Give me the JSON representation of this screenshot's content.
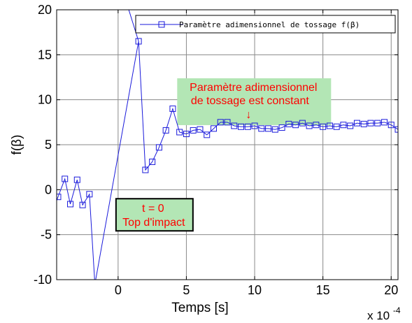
{
  "chart_data": {
    "type": "line",
    "xlabel": "Temps [s]",
    "ylabel": "f(β)",
    "x_exponent_base": "x 10",
    "x_exponent_power": "-4",
    "xlim": [
      -4.5,
      20.5
    ],
    "ylim": [
      -10,
      20
    ],
    "xticks": [
      0,
      5,
      10,
      15,
      20
    ],
    "yticks": [
      -10,
      -5,
      0,
      5,
      10,
      15,
      20
    ],
    "xtick_labels": [
      "0",
      "5",
      "10",
      "15",
      "20"
    ],
    "ytick_labels": [
      "-10",
      "-5",
      "0",
      "5",
      "10",
      "15",
      "20"
    ],
    "grid": true,
    "legend_position": "top-right",
    "colors": {
      "series": "#1a1adb",
      "annotation_fill": "#b3e6b5",
      "annotation_text": "#ff0000",
      "grid": "#8a8a8a"
    },
    "series": [
      {
        "name": "Paramètre adimensionnel de tossage f(β)",
        "marker": "square",
        "x": [
          -4.5,
          -4.4,
          -3.9,
          -3.5,
          -3.0,
          -2.6,
          -2.1,
          -1.7,
          1.5,
          2.0,
          2.5,
          3.0,
          3.5,
          4.0,
          4.5,
          5.0,
          5.5,
          6.0,
          6.5,
          7.0,
          7.5,
          8.0,
          8.5,
          9.0,
          9.5,
          10.0,
          10.5,
          11.0,
          11.5,
          12.0,
          12.5,
          13.0,
          13.5,
          14.0,
          14.5,
          15.0,
          15.5,
          16.0,
          16.5,
          17.0,
          17.5,
          18.0,
          18.5,
          19.0,
          19.5,
          20.0,
          20.5
        ],
        "y": [
          -1.2,
          -0.8,
          1.2,
          -1.6,
          1.1,
          -1.7,
          -0.5,
          -10.5,
          16.5,
          2.2,
          3.1,
          4.7,
          6.6,
          9.0,
          6.4,
          6.2,
          6.6,
          6.7,
          6.1,
          6.8,
          7.5,
          7.5,
          7.1,
          7.0,
          7.0,
          7.1,
          6.8,
          6.8,
          6.7,
          6.9,
          7.3,
          7.2,
          7.4,
          7.1,
          7.2,
          7.0,
          7.1,
          7.0,
          7.2,
          7.1,
          7.4,
          7.3,
          7.4,
          7.4,
          7.5,
          7.2,
          6.7
        ],
        "marked": [
          false,
          true,
          true,
          true,
          true,
          true,
          true,
          false,
          true,
          true,
          true,
          true,
          true,
          true,
          true,
          true,
          true,
          true,
          true,
          true,
          true,
          true,
          true,
          true,
          true,
          true,
          true,
          true,
          true,
          true,
          true,
          true,
          true,
          true,
          true,
          true,
          true,
          true,
          true,
          true,
          true,
          true,
          true,
          true,
          true,
          true,
          true
        ],
        "extends_beyond_top": [
          0.75,
          1.5
        ]
      }
    ],
    "annotations": [
      {
        "lines": [
          "Paramètre adimensionnel",
          "de tossage est constant"
        ],
        "arrow": "↓",
        "at": [
          11.5,
          8.5
        ]
      },
      {
        "lines": [
          "t = 0",
          "Top d'impact"
        ],
        "at": [
          0.0,
          -4.5
        ]
      }
    ]
  }
}
